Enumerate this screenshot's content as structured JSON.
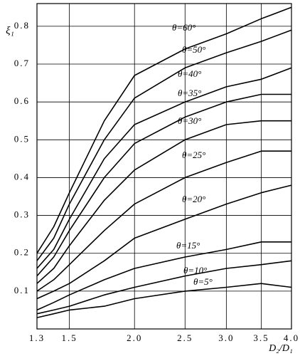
{
  "chart_data": {
    "type": "line",
    "x": [
      1.3,
      1.4,
      1.5,
      1.75,
      2.0,
      2.5,
      3.0,
      3.5,
      4.0
    ],
    "xscale": "log",
    "xlim": [
      1.3,
      4.0
    ],
    "xticks": [
      1.3,
      1.5,
      {
        "value": 2,
        "label": "2.0"
      },
      2.5,
      {
        "value": 3,
        "label": "3.0"
      },
      3.5,
      {
        "value": 4,
        "label": "4.0"
      }
    ],
    "ylim": [
      0,
      0.86
    ],
    "yticks": [
      0.1,
      0.2,
      0.3,
      0.4,
      0.5,
      0.6,
      0.7,
      0.8
    ],
    "xlabel": "D₂/D₁",
    "ylabel": "ξ₁",
    "grid": true,
    "series": [
      {
        "name": "θ=5°",
        "color": "#000000",
        "values": [
          0.03,
          0.04,
          0.05,
          0.06,
          0.08,
          0.1,
          0.11,
          0.12,
          0.11
        ]
      },
      {
        "name": "θ=10°",
        "color": "#000000",
        "values": [
          0.04,
          0.05,
          0.06,
          0.09,
          0.11,
          0.14,
          0.16,
          0.17,
          0.18
        ]
      },
      {
        "name": "θ=15°",
        "color": "#000000",
        "values": [
          0.05,
          0.07,
          0.09,
          0.13,
          0.16,
          0.19,
          0.21,
          0.23,
          0.23
        ]
      },
      {
        "name": "θ=20°",
        "color": "#000000",
        "values": [
          0.08,
          0.1,
          0.12,
          0.18,
          0.24,
          0.29,
          0.33,
          0.36,
          0.38
        ]
      },
      {
        "name": "θ=25°",
        "color": "#000000",
        "values": [
          0.1,
          0.13,
          0.17,
          0.26,
          0.33,
          0.4,
          0.44,
          0.47,
          0.47
        ]
      },
      {
        "name": "θ=30°",
        "color": "#000000",
        "values": [
          0.12,
          0.16,
          0.22,
          0.34,
          0.42,
          0.5,
          0.54,
          0.55,
          0.55
        ]
      },
      {
        "name": "θ=35°",
        "color": "#000000",
        "values": [
          0.14,
          0.19,
          0.26,
          0.4,
          0.49,
          0.56,
          0.6,
          0.62,
          0.62
        ]
      },
      {
        "name": "θ=40°",
        "color": "#000000",
        "values": [
          0.16,
          0.21,
          0.29,
          0.45,
          0.54,
          0.6,
          0.64,
          0.66,
          0.69
        ]
      },
      {
        "name": "θ=50°",
        "color": "#000000",
        "values": [
          0.18,
          0.24,
          0.33,
          0.5,
          0.61,
          0.69,
          0.73,
          0.76,
          0.79
        ]
      },
      {
        "name": "θ=60°",
        "color": "#000000",
        "values": [
          0.2,
          0.27,
          0.36,
          0.55,
          0.67,
          0.74,
          0.78,
          0.82,
          0.85
        ]
      }
    ]
  }
}
